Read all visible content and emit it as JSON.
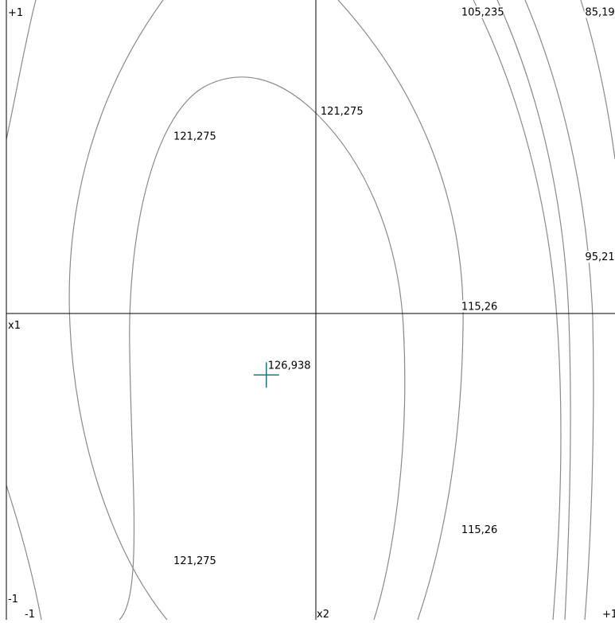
{
  "chart_data": {
    "type": "contour",
    "title": "",
    "xlabel": "x2",
    "ylabel": "x1",
    "xlim": [
      -1,
      1
    ],
    "ylim": [
      -1,
      1
    ],
    "grid": false,
    "tick_labels": {
      "y_top": "+1",
      "y_bottom": "-1",
      "x_left": "-1",
      "x_right": "+1"
    },
    "optimum": {
      "x2": -0.16,
      "x1": -0.21,
      "label": "126,938",
      "color": "#0e8080"
    },
    "contour_labels": [
      {
        "text": "121,275",
        "x2": -0.46,
        "x1": 0.55
      },
      {
        "text": "121,275",
        "x2": 0.015,
        "x1": 0.63
      },
      {
        "text": "121,275",
        "x2": -0.46,
        "x1": -0.82
      },
      {
        "text": "115,26",
        "x2": 0.47,
        "x1": 0.0
      },
      {
        "text": "115,26",
        "x2": 0.47,
        "x1": -0.72
      },
      {
        "text": "105,235",
        "x2": 0.47,
        "x1": 0.95
      },
      {
        "text": "95,21",
        "x2": 0.87,
        "x1": 0.16
      },
      {
        "text": "85,19",
        "x2": 0.87,
        "x1": 0.95
      }
    ],
    "colors": {
      "axis": "#000000",
      "contour": "#8a8a8a",
      "marker": "#0e8080"
    }
  }
}
